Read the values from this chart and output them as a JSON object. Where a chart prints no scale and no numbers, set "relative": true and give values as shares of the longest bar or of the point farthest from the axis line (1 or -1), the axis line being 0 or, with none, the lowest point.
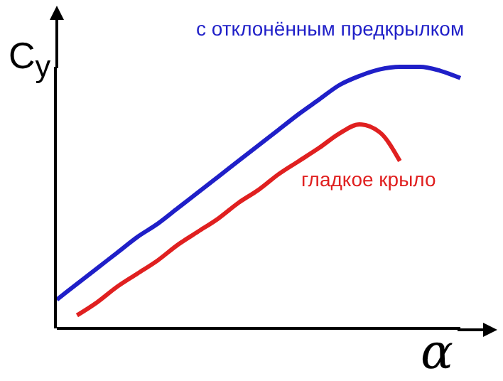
{
  "chart_data": {
    "type": "line",
    "relative": true,
    "xlabel": "α",
    "ylabel": "C$_{y}$",
    "legend": false,
    "grid": false,
    "marker": "none",
    "line_style": "solid",
    "categories": [
      null,
      null,
      null,
      null,
      null,
      null,
      null,
      null,
      null,
      null,
      null,
      null,
      null,
      null,
      null,
      null,
      null,
      null,
      null,
      null,
      null
    ],
    "series": [
      {
        "name": "с отклонённым предкрылком",
        "color": "#1f1fc8",
        "values": [
          0.11,
          0.17,
          0.23,
          0.29,
          0.35,
          0.4,
          0.46,
          0.52,
          0.58,
          0.64,
          0.7,
          0.76,
          0.82,
          0.875,
          0.93,
          0.965,
          0.99,
          1,
          1,
          0.985,
          0.957
        ]
      },
      {
        "name": "гладкое крыло",
        "color": "#e02020",
        "values": [
          null,
          0.05,
          0.1,
          0.16,
          0.21,
          0.26,
          0.32,
          0.37,
          0.42,
          0.48,
          0.53,
          0.59,
          0.64,
          0.69,
          0.745,
          0.78,
          0.75,
          0.64,
          null,
          null,
          null
        ]
      }
    ]
  }
}
